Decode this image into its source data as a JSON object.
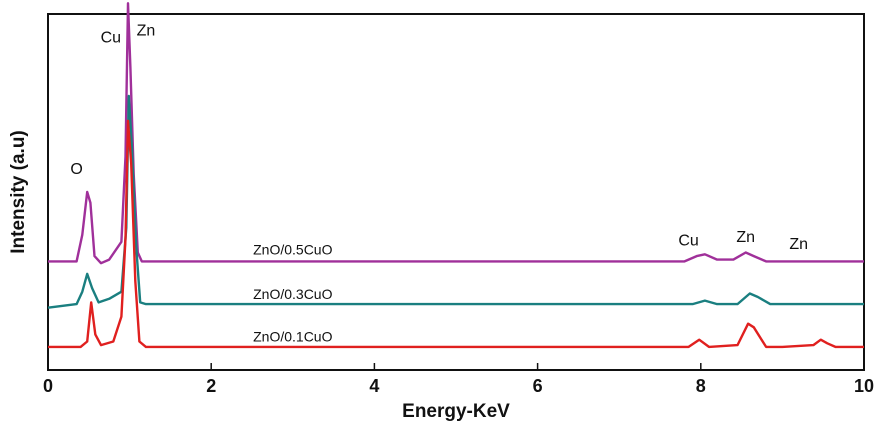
{
  "chart_data": {
    "type": "line",
    "title": "",
    "xlabel": "Energy-KeV",
    "ylabel": "Intensity (a.u)",
    "xlim": [
      0,
      10
    ],
    "xticks": [
      "0",
      "2",
      "4",
      "6",
      "8",
      "10"
    ],
    "ylim": [
      0,
      100
    ],
    "grid": false,
    "legend": "none",
    "series": [
      {
        "name": "ZnO/0.5CuO",
        "color": "#a0309a",
        "x": [
          0,
          0.35,
          0.42,
          0.48,
          0.52,
          0.57,
          0.65,
          0.75,
          0.9,
          0.95,
          0.98,
          1.01,
          1.05,
          1.1,
          1.15,
          1.3,
          4.5,
          7.8,
          7.95,
          8.05,
          8.2,
          8.4,
          8.55,
          8.65,
          8.8,
          9.0,
          9.4,
          9.5,
          10
        ],
        "y": [
          30.5,
          30.5,
          38,
          50,
          47,
          32,
          30,
          31,
          36,
          60,
          103,
          85,
          55,
          33,
          30.5,
          30.5,
          30.5,
          30.5,
          32,
          32.5,
          31,
          31,
          33,
          32,
          30.5,
          30.5,
          30.5,
          30.5,
          30.5
        ]
      },
      {
        "name": "ZnO/0.3CuO",
        "color": "#1a7f80",
        "x": [
          0,
          0.35,
          0.42,
          0.48,
          0.54,
          0.62,
          0.75,
          0.9,
          0.96,
          0.99,
          1.03,
          1.08,
          1.13,
          1.2,
          4.5,
          7.9,
          8.05,
          8.2,
          8.45,
          8.6,
          8.7,
          8.85,
          10
        ],
        "y": [
          17.5,
          18.5,
          22,
          27,
          23,
          19,
          20,
          22,
          40,
          77,
          62,
          35,
          19,
          18.5,
          18.5,
          18.5,
          19.5,
          18.5,
          18.5,
          21.5,
          20.5,
          18.5,
          18.5
        ]
      },
      {
        "name": "ZnO/0.1CuO",
        "color": "#e0201f",
        "x": [
          0,
          0.4,
          0.48,
          0.53,
          0.58,
          0.65,
          0.8,
          0.9,
          0.95,
          0.98,
          1.02,
          1.07,
          1.12,
          1.2,
          4.5,
          7.85,
          7.98,
          8.1,
          8.45,
          8.58,
          8.65,
          8.8,
          9.0,
          9.38,
          9.47,
          9.55,
          9.65,
          10
        ],
        "y": [
          6.5,
          6.5,
          8,
          19,
          10,
          7,
          8,
          15,
          37,
          70,
          58,
          25,
          8,
          6.5,
          6.5,
          6.5,
          8.5,
          6.5,
          7,
          13,
          12,
          6.5,
          6.5,
          7,
          8.5,
          7.5,
          6.5,
          6.5
        ]
      }
    ],
    "series_labels": [
      {
        "text": "ZnO/0.5CuO",
        "x": 3.0,
        "y": 32.5
      },
      {
        "text": "ZnO/0.3CuO",
        "x": 3.0,
        "y": 20
      },
      {
        "text": "ZnO/0.1CuO",
        "x": 3.0,
        "y": 8
      }
    ],
    "annotations": [
      {
        "text": "O",
        "x": 0.35,
        "y": 55
      },
      {
        "text": "Cu",
        "x": 0.77,
        "y": 92
      },
      {
        "text": "Zn",
        "x": 1.2,
        "y": 94
      },
      {
        "text": "Cu",
        "x": 7.85,
        "y": 35
      },
      {
        "text": "Zn",
        "x": 8.55,
        "y": 36
      },
      {
        "text": "Zn",
        "x": 9.2,
        "y": 34
      }
    ]
  }
}
